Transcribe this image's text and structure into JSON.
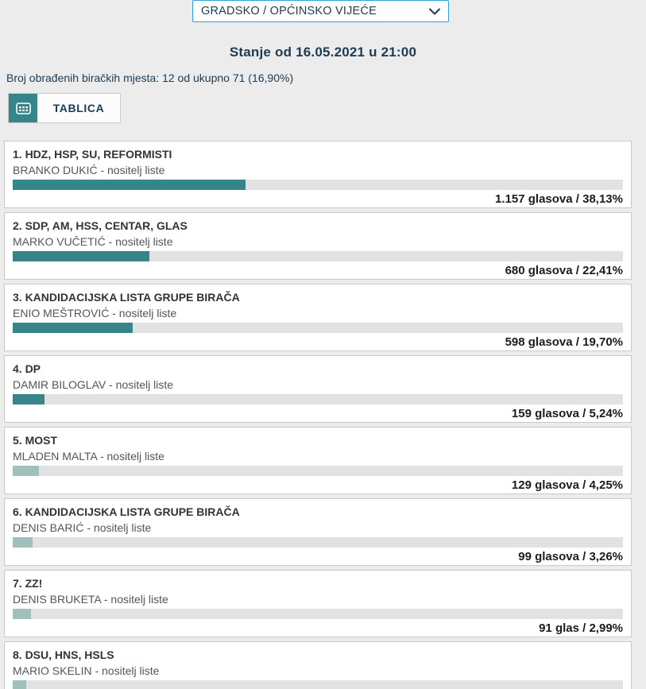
{
  "select": {
    "value": "GRADSKO / OPĆINSKO VIJEĆE"
  },
  "header": {
    "title": "Stanje od 16.05.2021 u 21:00",
    "processed_line": "Broj obrađenih biračkih mjesta: 12 od ukupno 71 (16,90%)"
  },
  "toolbar": {
    "table_button_label": "TABLICA",
    "table_icon": "table-grid-icon"
  },
  "colors": {
    "accent_teal": "#37848B",
    "pale_teal": "#9FC0BB",
    "bar_track": "#E2E2E2",
    "navy_text": "#1D3C52",
    "select_border": "#2EA2DD",
    "page_background": "#ECECEC",
    "card_border": "#C9C9C9"
  },
  "lists": [
    {
      "title": "1. HDZ, HSP, SU, REFORMISTI",
      "holder": "BRANKO DUKIĆ - nositelj liste",
      "votes_label": "1.157 glasova / 38,13%",
      "percent": 38.13,
      "bar_class": "strong"
    },
    {
      "title": "2. SDP, AM, HSS, CENTAR, GLAS",
      "holder": "MARKO VUČETIĆ - nositelj liste",
      "votes_label": "680 glasova / 22,41%",
      "percent": 22.41,
      "bar_class": "strong"
    },
    {
      "title": "3. KANDIDACIJSKA LISTA GRUPE BIRAČA",
      "holder": "ENIO MEŠTROVIĆ - nositelj liste",
      "votes_label": "598 glasova / 19,70%",
      "percent": 19.7,
      "bar_class": "strong"
    },
    {
      "title": "4. DP",
      "holder": "DAMIR BILOGLAV - nositelj liste",
      "votes_label": "159 glasova / 5,24%",
      "percent": 5.24,
      "bar_class": "strong"
    },
    {
      "title": "5. MOST",
      "holder": "MLADEN MALTA - nositelj liste",
      "votes_label": "129 glasova / 4,25%",
      "percent": 4.25,
      "bar_class": "pale"
    },
    {
      "title": "6. KANDIDACIJSKA LISTA GRUPE BIRAČA",
      "holder": "DENIS BARIĆ - nositelj liste",
      "votes_label": "99 glasova / 3,26%",
      "percent": 3.26,
      "bar_class": "pale"
    },
    {
      "title": "7. ZZ!",
      "holder": "DENIS BRUKETA - nositelj liste",
      "votes_label": "91 glas / 2,99%",
      "percent": 2.99,
      "bar_class": "pale"
    },
    {
      "title": "8. DSU, HNS, HSLS",
      "holder": "MARIO SKELIN - nositelj liste",
      "votes_label": "",
      "percent": 2.2,
      "bar_class": "pale"
    }
  ]
}
